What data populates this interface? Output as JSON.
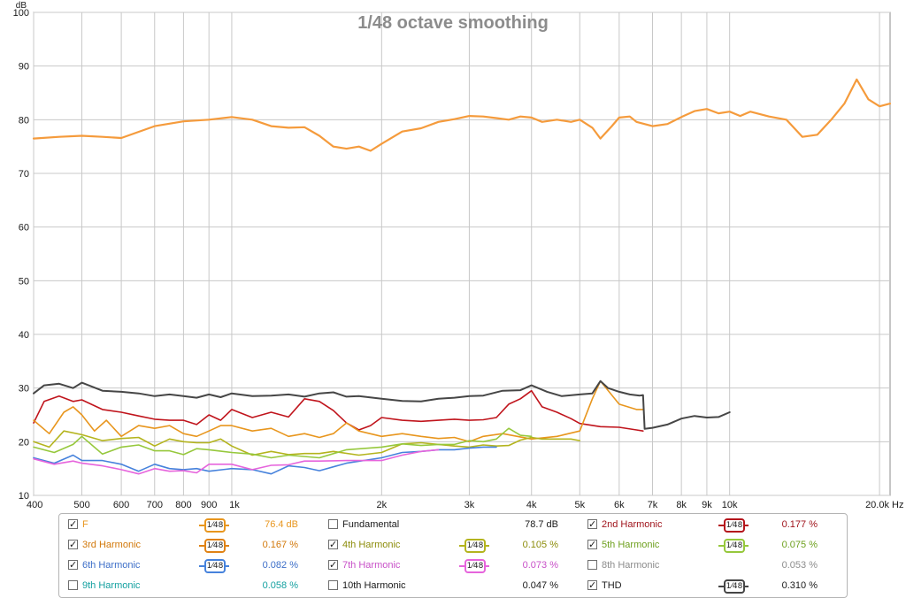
{
  "chart_data": {
    "type": "line",
    "title": "1/48 octave smoothing",
    "ylabel": "dB",
    "xunit": "Hz",
    "xscale": "log",
    "xlim": [
      400,
      21000
    ],
    "ylim": [
      10,
      100
    ],
    "grid": true,
    "yticks": [
      "10",
      "20",
      "30",
      "40",
      "50",
      "60",
      "70",
      "80",
      "90",
      "100"
    ],
    "xticks": [
      {
        "v": 400,
        "label": "400"
      },
      {
        "v": 500,
        "label": "500"
      },
      {
        "v": 600,
        "label": "600"
      },
      {
        "v": 700,
        "label": "700"
      },
      {
        "v": 800,
        "label": "800"
      },
      {
        "v": 900,
        "label": "900"
      },
      {
        "v": 1000,
        "label": "1k"
      },
      {
        "v": 2000,
        "label": "2k"
      },
      {
        "v": 3000,
        "label": "3k"
      },
      {
        "v": 4000,
        "label": "4k"
      },
      {
        "v": 5000,
        "label": "5k"
      },
      {
        "v": 6000,
        "label": "6k"
      },
      {
        "v": 7000,
        "label": "7k"
      },
      {
        "v": 8000,
        "label": "8k"
      },
      {
        "v": 9000,
        "label": "9k"
      },
      {
        "v": 10000,
        "label": "10k"
      },
      {
        "v": 20000,
        "label": "20.0k Hz"
      }
    ],
    "series": [
      {
        "name": "F",
        "color": "#f59b3c",
        "width": 2.2,
        "x": [
          400,
          450,
          500,
          550,
          600,
          700,
          800,
          900,
          1000,
          1100,
          1200,
          1300,
          1400,
          1500,
          1600,
          1700,
          1800,
          1900,
          2000,
          2200,
          2400,
          2600,
          2800,
          3000,
          3200,
          3400,
          3600,
          3800,
          4000,
          4200,
          4500,
          4800,
          5000,
          5300,
          5500,
          5800,
          6000,
          6300,
          6500,
          7000,
          7500,
          8000,
          8500,
          9000,
          9500,
          10000,
          10500,
          11000,
          12000,
          13000,
          14000,
          15000,
          16000,
          17000,
          18000,
          19000,
          20000,
          21000
        ],
        "y": [
          76.5,
          76.8,
          77,
          76.8,
          76.6,
          78.8,
          79.7,
          80,
          80.5,
          80,
          78.8,
          78.5,
          78.6,
          77,
          75,
          74.6,
          75,
          74.2,
          75.5,
          77.8,
          78.4,
          79.6,
          80.1,
          80.7,
          80.6,
          80.3,
          80,
          80.6,
          80.4,
          79.6,
          80,
          79.6,
          80,
          78.5,
          76.5,
          78.8,
          80.4,
          80.6,
          79.6,
          78.8,
          79.2,
          80.5,
          81.6,
          82,
          81.2,
          81.5,
          80.7,
          81.5,
          80.6,
          80,
          76.8,
          77.2,
          80,
          83,
          87.5,
          83.8,
          82.5,
          83
        ]
      },
      {
        "name": "2nd Harmonic",
        "color": "#c0141c",
        "width": 1.6,
        "x": [
          400,
          420,
          450,
          480,
          500,
          550,
          600,
          650,
          700,
          750,
          800,
          850,
          900,
          950,
          1000,
          1100,
          1200,
          1300,
          1400,
          1500,
          1600,
          1700,
          1800,
          1900,
          2000,
          2200,
          2400,
          2600,
          2800,
          3000,
          3200,
          3400,
          3600,
          3800,
          4000,
          4200,
          4500,
          4800,
          5000,
          5500,
          6000,
          6500,
          6700
        ],
        "y": [
          23.5,
          27.5,
          28.5,
          27.5,
          27.8,
          26,
          25.5,
          24.8,
          24.2,
          24,
          24,
          23.2,
          25,
          24,
          26,
          24.5,
          25.5,
          24.6,
          28,
          27.5,
          25.8,
          23.5,
          22.2,
          23,
          24.5,
          24,
          23.8,
          24,
          24.2,
          24,
          24.1,
          24.5,
          27,
          28,
          29.5,
          26.5,
          25.5,
          24.3,
          23.4,
          22.8,
          22.7,
          22.2,
          22
        ]
      },
      {
        "name": "3rd Harmonic",
        "color": "#e8961e",
        "width": 1.6,
        "x": [
          400,
          430,
          460,
          480,
          500,
          530,
          560,
          600,
          650,
          700,
          750,
          800,
          850,
          900,
          950,
          1000,
          1100,
          1200,
          1300,
          1400,
          1500,
          1600,
          1700,
          1800,
          2000,
          2200,
          2400,
          2600,
          2800,
          3000,
          3200,
          3500,
          4000,
          4500,
          5000,
          5300,
          5500,
          6000,
          6500,
          6700
        ],
        "y": [
          24,
          21.5,
          25.5,
          26.5,
          25,
          22,
          24,
          21,
          23,
          22.5,
          23,
          21.5,
          21,
          22,
          23,
          23,
          22,
          22.5,
          21,
          21.5,
          20.8,
          21.5,
          23.5,
          22,
          21,
          21.5,
          21,
          20.6,
          20.8,
          20,
          21,
          21.5,
          20.5,
          21,
          22,
          28,
          31.3,
          27,
          26,
          26
        ]
      },
      {
        "name": "4th Harmonic",
        "color": "#b4b41e",
        "width": 1.6,
        "x": [
          400,
          430,
          460,
          500,
          550,
          600,
          650,
          700,
          750,
          800,
          850,
          900,
          950,
          1000,
          1100,
          1200,
          1300,
          1400,
          1500,
          1600,
          1800,
          2000,
          2200,
          2400,
          2600,
          2800,
          3000,
          3200,
          3400,
          3600,
          3800,
          4000,
          4200,
          4500,
          4800,
          5000
        ],
        "y": [
          20,
          19,
          22,
          21.3,
          20.2,
          20.6,
          20.8,
          19.2,
          20.5,
          20,
          19.8,
          19.8,
          20.5,
          19.2,
          17.5,
          18.2,
          17.6,
          17.8,
          17.8,
          18.2,
          17.5,
          18,
          19.6,
          19.8,
          19.5,
          19.2,
          19,
          19.4,
          19.2,
          19.3,
          20.3,
          20.8,
          20.5,
          20.5,
          20.5,
          20.2
        ]
      },
      {
        "name": "5th Harmonic",
        "color": "#96c83c",
        "width": 1.6,
        "x": [
          400,
          440,
          480,
          500,
          550,
          600,
          650,
          700,
          750,
          800,
          850,
          900,
          1000,
          1100,
          1200,
          1300,
          1500,
          1700,
          2000,
          2200,
          2400,
          2600,
          2800,
          3000,
          3200,
          3400,
          3600,
          3800,
          4000
        ],
        "y": [
          19,
          18,
          19.5,
          21,
          17.7,
          19,
          19.4,
          18.3,
          18.3,
          17.6,
          18.7,
          18.5,
          18,
          17.7,
          17,
          17.5,
          17,
          18.5,
          19,
          19.6,
          19.3,
          19.5,
          19.5,
          20.2,
          20,
          20.5,
          22.5,
          21.2,
          21
        ]
      },
      {
        "name": "6th Harmonic",
        "color": "#4682dc",
        "width": 1.6,
        "x": [
          400,
          440,
          480,
          500,
          550,
          600,
          650,
          700,
          750,
          800,
          850,
          900,
          1000,
          1100,
          1200,
          1300,
          1400,
          1500,
          1700,
          2000,
          2200,
          2400,
          2600,
          2800,
          3000,
          3200,
          3400
        ],
        "y": [
          17,
          16,
          17.5,
          16.5,
          16.5,
          15.8,
          14.5,
          15.8,
          15,
          14.8,
          15,
          14.5,
          15,
          14.8,
          14,
          15.5,
          15.2,
          14.6,
          16,
          17,
          18,
          18.2,
          18.5,
          18.5,
          18.8,
          19,
          19
        ]
      },
      {
        "name": "7th Harmonic",
        "color": "#e664dc",
        "width": 1.6,
        "x": [
          400,
          440,
          480,
          500,
          550,
          600,
          650,
          700,
          750,
          800,
          850,
          900,
          1000,
          1100,
          1200,
          1300,
          1400,
          1500,
          1700,
          2000,
          2200,
          2400,
          2600
        ],
        "y": [
          16.8,
          15.8,
          16.4,
          16,
          15.5,
          14.8,
          14,
          15,
          14.5,
          14.6,
          14.2,
          15.8,
          15.8,
          14.8,
          15.6,
          15.7,
          16.4,
          16.4,
          16.5,
          16.5,
          17.5,
          18.2,
          18.5
        ]
      },
      {
        "name": "THD",
        "color": "#464646",
        "width": 2.0,
        "x": [
          400,
          420,
          450,
          480,
          500,
          550,
          600,
          650,
          700,
          750,
          800,
          850,
          900,
          950,
          1000,
          1100,
          1200,
          1300,
          1400,
          1500,
          1600,
          1700,
          1800,
          2000,
          2200,
          2400,
          2600,
          2800,
          3000,
          3200,
          3500,
          3800,
          4000,
          4300,
          4600,
          5000,
          5300,
          5500,
          5700,
          6000,
          6300,
          6600,
          6700,
          6750,
          7000,
          7500,
          8000,
          8500,
          9000,
          9500,
          10000
        ],
        "y": [
          29,
          30.5,
          30.8,
          30,
          31,
          29.5,
          29.3,
          29,
          28.5,
          28.8,
          28.5,
          28.2,
          28.8,
          28.3,
          29,
          28.5,
          28.6,
          28.8,
          28.4,
          29,
          29.2,
          28.4,
          28.5,
          28,
          27.6,
          27.5,
          28,
          28.2,
          28.5,
          28.6,
          29.5,
          29.6,
          30.5,
          29.3,
          28.5,
          28.8,
          29,
          31.3,
          30,
          29.3,
          28.8,
          28.6,
          28.7,
          22.4,
          22.6,
          23.2,
          24.3,
          24.8,
          24.5,
          24.6,
          25.5
        ]
      }
    ]
  },
  "legend": {
    "items": [
      {
        "name": "F",
        "checked": true,
        "color": "#e8961e",
        "value": "76.4 dB",
        "smooth": "1⁄48",
        "smooth_color": "#e8961e"
      },
      {
        "name": "Fundamental",
        "checked": false,
        "color": "#1a1a1a",
        "value": "78.7 dB",
        "smooth": "",
        "smooth_color": ""
      },
      {
        "name": "2nd Harmonic",
        "checked": true,
        "color": "#a0141c",
        "value": "0.177 %",
        "smooth": "1⁄48",
        "smooth_color": "#b4141c"
      },
      {
        "name": "3rd Harmonic",
        "checked": true,
        "color": "#d2780a",
        "value": "0.167 %",
        "smooth": "1⁄48",
        "smooth_color": "#e08214"
      },
      {
        "name": "4th Harmonic",
        "checked": true,
        "color": "#8c8c0a",
        "value": "0.105 %",
        "smooth": "1⁄48",
        "smooth_color": "#b4b41e"
      },
      {
        "name": "5th Harmonic",
        "checked": true,
        "color": "#6ea01e",
        "value": "0.075 %",
        "smooth": "1⁄48",
        "smooth_color": "#96c83c"
      },
      {
        "name": "6th Harmonic",
        "checked": true,
        "color": "#3c6ec8",
        "value": "0.082 %",
        "smooth": "1⁄48",
        "smooth_color": "#4682dc"
      },
      {
        "name": "7th Harmonic",
        "checked": true,
        "color": "#c850c8",
        "value": "0.073 %",
        "smooth": "1⁄48",
        "smooth_color": "#e664dc"
      },
      {
        "name": "8th Harmonic",
        "checked": false,
        "color": "#8c8c8c",
        "value": "0.053 %",
        "smooth": "",
        "smooth_color": ""
      },
      {
        "name": "9th Harmonic",
        "checked": false,
        "color": "#14a0a0",
        "value": "0.058 %",
        "smooth": "",
        "smooth_color": ""
      },
      {
        "name": "10th Harmonic",
        "checked": false,
        "color": "#1a1a1a",
        "value": "0.047 %",
        "smooth": "",
        "smooth_color": ""
      },
      {
        "name": "THD",
        "checked": true,
        "color": "#1a1a1a",
        "value": "0.310 %",
        "smooth": "1⁄48",
        "smooth_color": "#464646"
      }
    ]
  }
}
